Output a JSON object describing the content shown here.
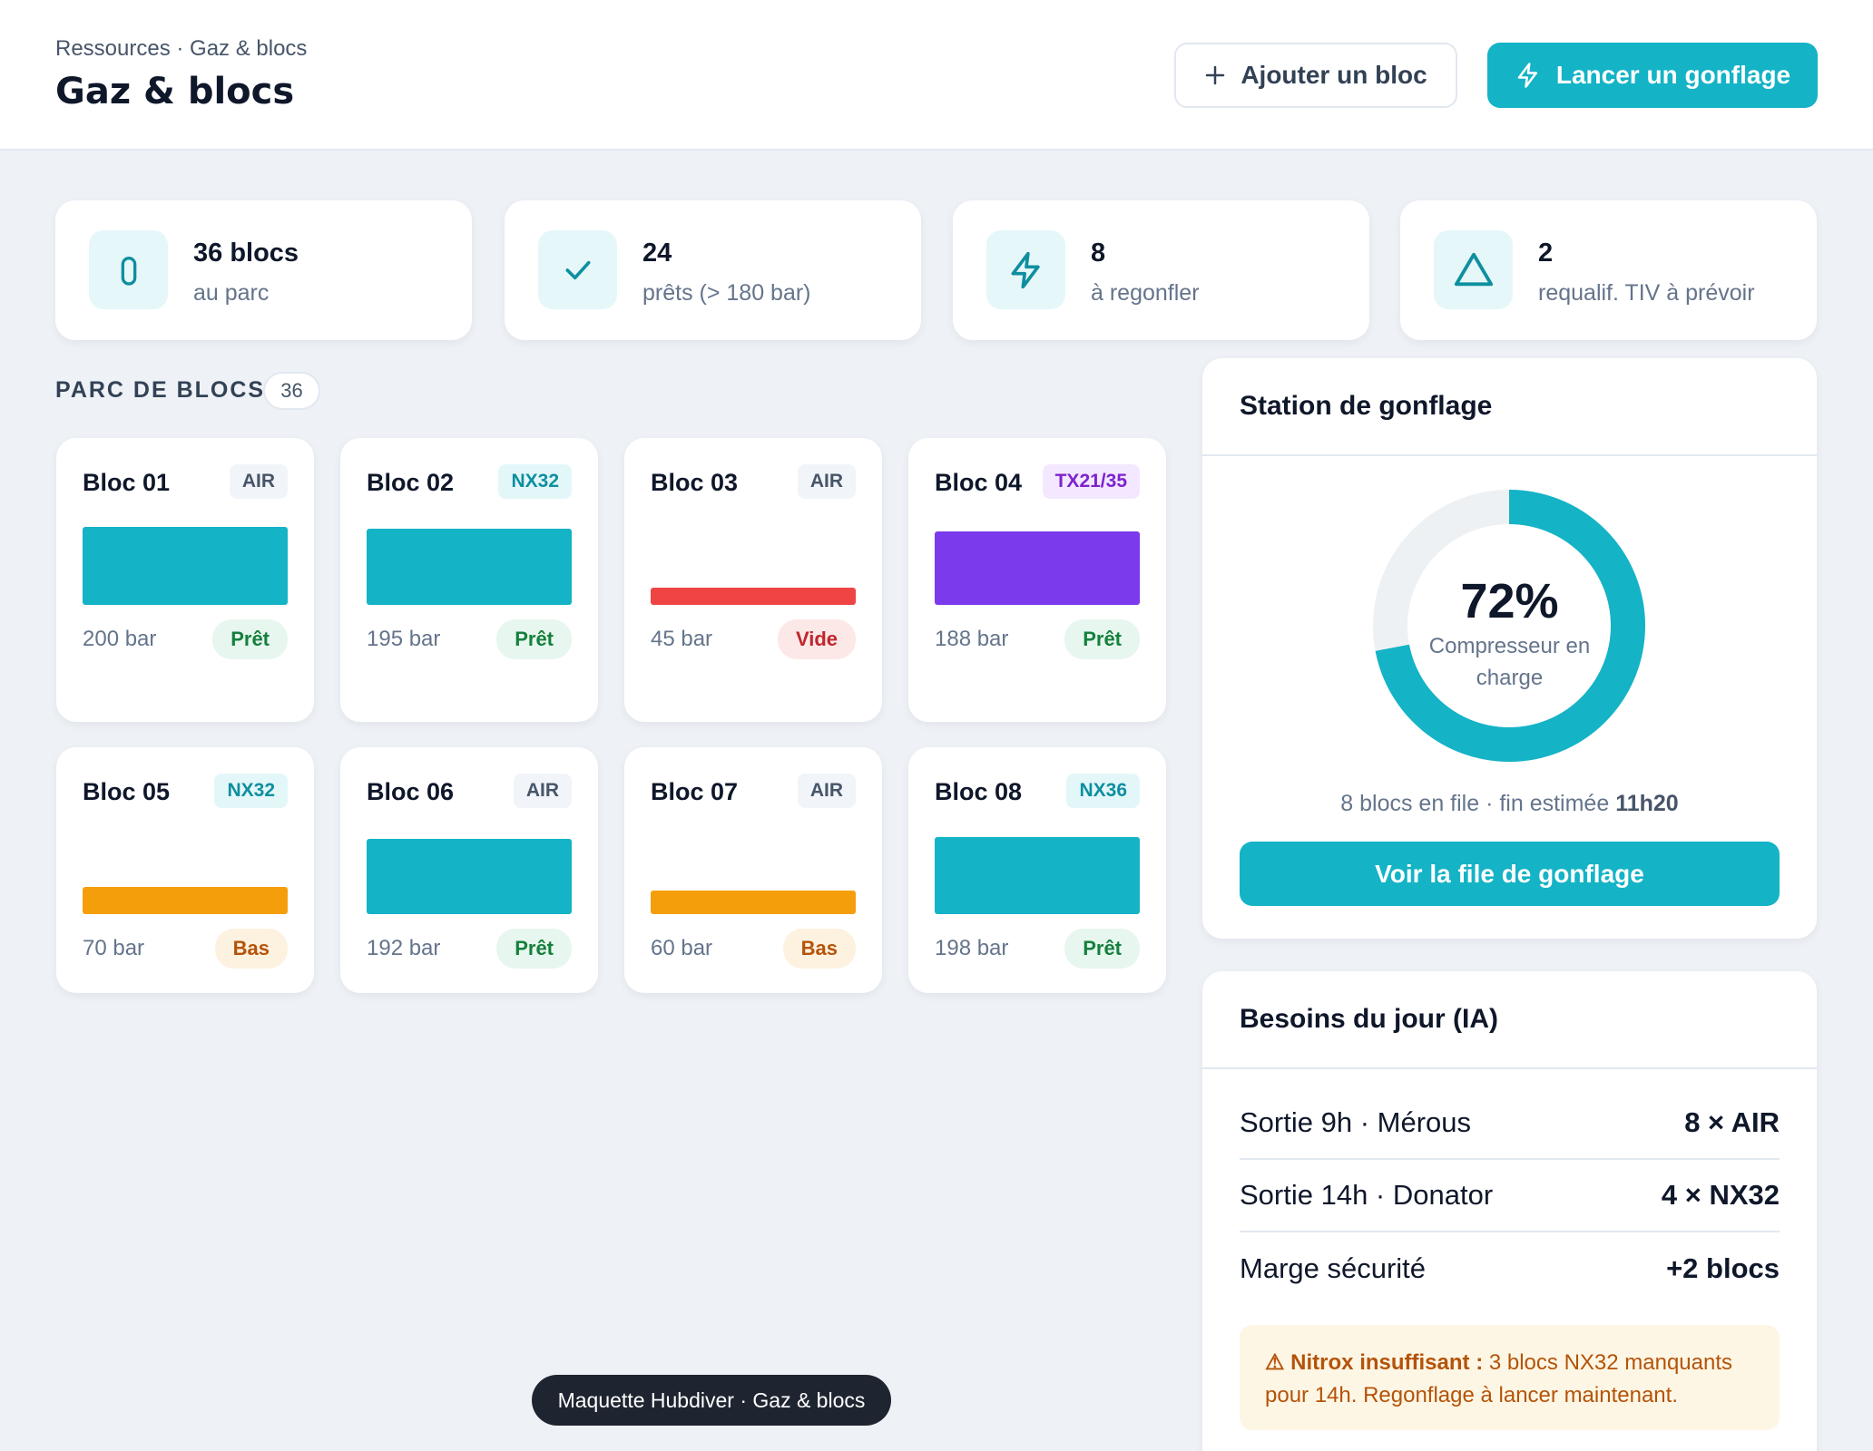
{
  "header": {
    "breadcrumb": "Ressources · Gaz & blocs",
    "title": "Gaz & blocs",
    "add_button": "Ajouter un bloc",
    "launch_button": "Lancer un gonflage"
  },
  "stats": [
    {
      "value": "36 blocs",
      "label": "au parc"
    },
    {
      "value": 24,
      "label": "prêts (> 180 bar)"
    },
    {
      "value": 8,
      "label": "à regonfler"
    },
    {
      "value": 2,
      "label": "requalif. TIV à prévoir"
    }
  ],
  "blocs": {
    "title": "PARC DE BLOCS",
    "count": 36,
    "items": [
      {
        "name": "Bloc 01",
        "gas": {
          "label": "AIR",
          "color": "#475569",
          "bg": "#f1f5f9"
        },
        "pressure": {
          "value": 200,
          "label": "200 bar"
        },
        "bar_color": "#14b3c6",
        "status": {
          "label": "Prêt",
          "color": "#15803d",
          "bg": "#e7f6ee"
        }
      },
      {
        "name": "Bloc 02",
        "gas": {
          "label": "NX32",
          "color": "#0e8fa0",
          "bg": "#e3f7f9"
        },
        "pressure": {
          "value": 195,
          "label": "195 bar"
        },
        "bar_color": "#14b3c6",
        "status": {
          "label": "Prêt",
          "color": "#15803d",
          "bg": "#e7f6ee"
        }
      },
      {
        "name": "Bloc 03",
        "gas": {
          "label": "AIR",
          "color": "#475569",
          "bg": "#f1f5f9"
        },
        "pressure": {
          "value": 45,
          "label": "45 bar"
        },
        "bar_color": "#ef4444",
        "status": {
          "label": "Vide",
          "color": "#c0262d",
          "bg": "#fde8e8"
        }
      },
      {
        "name": "Bloc 04",
        "gas": {
          "label": "TX21/35",
          "color": "#7e22ce",
          "bg": "#f3e8ff"
        },
        "pressure": {
          "value": 188,
          "label": "188 bar"
        },
        "bar_color": "#7c3aed",
        "status": {
          "label": "Prêt",
          "color": "#15803d",
          "bg": "#e7f6ee"
        }
      },
      {
        "name": "Bloc 05",
        "gas": {
          "label": "NX32",
          "color": "#0e8fa0",
          "bg": "#e3f7f9"
        },
        "pressure": {
          "value": 70,
          "label": "70 bar"
        },
        "bar_color": "#f59e0b",
        "status": {
          "label": "Bas",
          "color": "#b45309",
          "bg": "#fdf1df"
        }
      },
      {
        "name": "Bloc 06",
        "gas": {
          "label": "AIR",
          "color": "#475569",
          "bg": "#f1f5f9"
        },
        "pressure": {
          "value": 192,
          "label": "192 bar"
        },
        "bar_color": "#14b3c6",
        "status": {
          "label": "Prêt",
          "color": "#15803d",
          "bg": "#e7f6ee"
        }
      },
      {
        "name": "Bloc 07",
        "gas": {
          "label": "AIR",
          "color": "#475569",
          "bg": "#f1f5f9"
        },
        "pressure": {
          "value": 60,
          "label": "60 bar"
        },
        "bar_color": "#f59e0b",
        "status": {
          "label": "Bas",
          "color": "#b45309",
          "bg": "#fdf1df"
        }
      },
      {
        "name": "Bloc 08",
        "gas": {
          "label": "NX36",
          "color": "#0e8fa0",
          "bg": "#e3f7f9"
        },
        "pressure": {
          "value": 198,
          "label": "198 bar"
        },
        "bar_color": "#14b3c6",
        "status": {
          "label": "Prêt",
          "color": "#15803d",
          "bg": "#e7f6ee"
        }
      }
    ]
  },
  "station": {
    "title": "Station de gonflage",
    "gauge": {
      "value": 72,
      "label": "72%",
      "color": "#14b3c6"
    },
    "caption": "Compresseur en charge",
    "queue_text": "8 blocs en file · fin estimée",
    "queue_end": "11h20",
    "button": "Voir la file de gonflage"
  },
  "needs": {
    "title": "Besoins du jour (IA)",
    "rows": [
      {
        "label": "Sortie 9h · Mérous",
        "value": "8 × AIR"
      },
      {
        "label": "Sortie 14h · Donator",
        "value": "4 × NX32"
      },
      {
        "label": "Marge sécurité",
        "value": "+2 blocs"
      }
    ],
    "alert_title": "⚠ Nitrox insuffisant :",
    "alert_text": "3 blocs NX32 manquants pour 14h. Regonflage à lancer maintenant."
  },
  "footer": "Maquette Hubdiver · Gaz & blocs"
}
